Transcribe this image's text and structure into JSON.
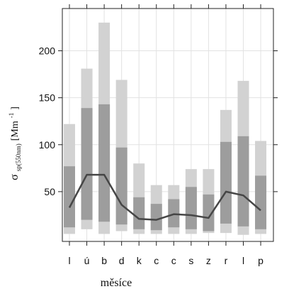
{
  "chart_data": {
    "type": "box",
    "categories": [
      "l",
      "ú",
      "b",
      "d",
      "k",
      "c",
      "c",
      "s",
      "z",
      "r",
      "l",
      "p"
    ],
    "xlabel": "měsíce",
    "ylabel": {
      "symbol": "σ",
      "subscript": "sp(550nm)",
      "unit_open": " [Mm",
      "unit_sup": "-1",
      "unit_close": "]"
    },
    "ylim": [
      -3,
      245
    ],
    "yticks": [
      50,
      100,
      150,
      200
    ],
    "grid": true,
    "series": [
      {
        "role": "outer-range",
        "color": "#d2d2d2",
        "low": [
          5,
          10,
          5,
          8,
          5,
          5,
          5,
          5,
          6,
          6,
          4,
          5
        ],
        "high": [
          122,
          181,
          230,
          169,
          80,
          57,
          57,
          74,
          74,
          137,
          168,
          104
        ]
      },
      {
        "role": "inner-range",
        "color": "#9d9d9d",
        "low": [
          12,
          20,
          18,
          15,
          10,
          9,
          12,
          10,
          8,
          16,
          13,
          10
        ],
        "high": [
          77,
          139,
          143,
          97,
          44,
          37,
          42,
          55,
          47,
          103,
          109,
          67
        ]
      },
      {
        "role": "median-line",
        "color": "#464646",
        "values": [
          33,
          68,
          68,
          36,
          21,
          20,
          26,
          25,
          22,
          50,
          46,
          30
        ]
      }
    ]
  }
}
